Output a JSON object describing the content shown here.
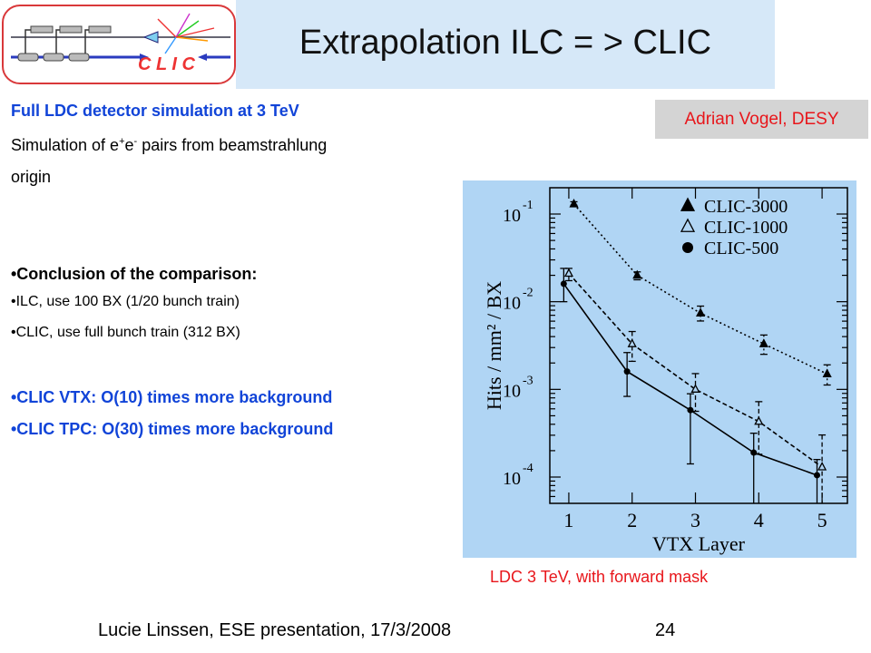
{
  "header": {
    "title": "Extrapolation ILC = > CLIC",
    "logo_text": "C L I C"
  },
  "author_badge": "Adrian Vogel, DESY",
  "body": {
    "line1": "Full LDC detector simulation at 3 TeV",
    "line2_pre": "Simulation of e",
    "line2_sup1": "+",
    "line2_mid": "e",
    "line2_sup2": "-",
    "line2_post": " pairs from beamstrahlung",
    "line3": "origin",
    "conclusion": "•Conclusion of the comparison:",
    "bullet_ilc": "•ILC, use 100 BX (1/20 bunch train)",
    "bullet_clic": "•CLIC, use full bunch train (312 BX)",
    "vtx": "•CLIC VTX: O(10) times more background",
    "tpc": "•CLIC TPC: O(30) times more background"
  },
  "caption": "LDC 3 TeV, with forward mask",
  "footer": {
    "text": "Lucie Linssen, ESE presentation, 17/3/2008",
    "page": "24"
  },
  "chart_data": {
    "type": "line",
    "xlabel": "VTX Layer",
    "ylabel": "Hits / mm² / BX",
    "x_ticks": [
      "1",
      "2",
      "3",
      "4",
      "5"
    ],
    "y_scale": "log",
    "y_tick_labels": [
      {
        "base": "10",
        "exp": "-1",
        "value": 0.1
      },
      {
        "base": "10",
        "exp": "-2",
        "value": 0.01
      },
      {
        "base": "10",
        "exp": "-3",
        "value": 0.001
      },
      {
        "base": "10",
        "exp": "-4",
        "value": 0.0001
      }
    ],
    "xlim": [
      0.7,
      5.4
    ],
    "ylim_exp": [
      -4.3,
      -0.7
    ],
    "legend_position": "top-right",
    "series": [
      {
        "name": "CLIC-3000",
        "marker": "filled-triangle",
        "line": "dotted",
        "x_offset": 0.08,
        "x": [
          1,
          2,
          3,
          4,
          5
        ],
        "y": [
          0.13,
          0.02,
          0.0074,
          0.0033,
          0.0015
        ],
        "err_lo_exp": [
          -0.9,
          -1.75,
          -2.22,
          -2.6,
          -2.95
        ],
        "err_hi_exp": [
          -0.86,
          -1.66,
          -2.05,
          -2.38,
          -2.72
        ]
      },
      {
        "name": "CLIC-1000",
        "marker": "open-triangle",
        "line": "dashed",
        "x_offset": 0.0,
        "x": [
          1,
          2,
          3,
          4,
          5
        ],
        "y": [
          0.021,
          0.0033,
          0.001,
          0.00043,
          0.00013
        ],
        "err_lo_exp": [
          -1.76,
          -2.68,
          -3.25,
          -3.74,
          -4.3
        ],
        "err_hi_exp": [
          -1.62,
          -2.34,
          -2.82,
          -3.14,
          -3.52
        ]
      },
      {
        "name": "CLIC-500",
        "marker": "filled-circle",
        "line": "solid",
        "x_offset": -0.08,
        "x": [
          1,
          2,
          3,
          4,
          5
        ],
        "y": [
          0.016,
          0.0016,
          0.00058,
          0.00019,
          0.000105
        ],
        "err_lo_exp": [
          -2.0,
          -3.08,
          -3.85,
          -4.3,
          -4.3
        ],
        "err_hi_exp": [
          -1.62,
          -2.58,
          -3.05,
          -3.5,
          -3.8
        ]
      }
    ]
  }
}
